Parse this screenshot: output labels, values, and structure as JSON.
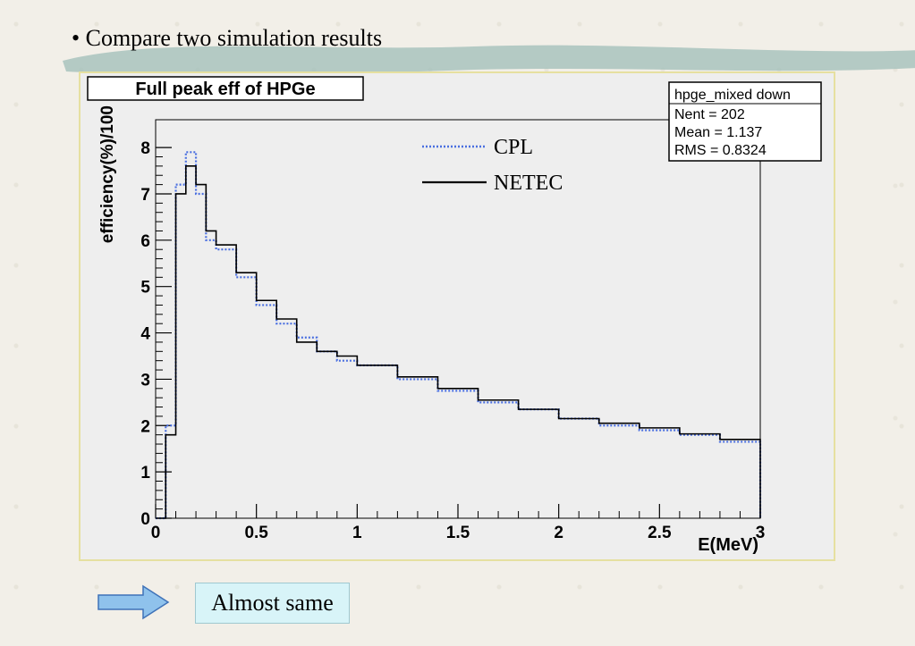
{
  "slide": {
    "bullet": "• Compare two simulation results",
    "conclusion": "Almost same"
  },
  "colors": {
    "cpl": "#4a6fe0",
    "netec": "#000000",
    "brush": "#9fbdb8",
    "frame_bg": "#eeeeee"
  },
  "chart_data": {
    "type": "line",
    "title": "Full peak eff of HPGe",
    "xlabel": "E(MeV)",
    "ylabel": "efficiency(%)/100",
    "xlim": [
      0,
      3
    ],
    "ylim": [
      0,
      8.6
    ],
    "xticks": [
      "0",
      "0.5",
      "1",
      "1.5",
      "2",
      "2.5",
      "3"
    ],
    "yticks": [
      "0",
      "1",
      "2",
      "3",
      "4",
      "5",
      "6",
      "7",
      "8"
    ],
    "legend": {
      "placement": "top-center",
      "entries": [
        "CPL",
        "NETEC"
      ]
    },
    "stats_box": {
      "title": "hpge_mixed down",
      "lines": [
        "Nent = 202",
        "Mean  =  1.137",
        "RMS   = 0.8324"
      ]
    },
    "series": [
      {
        "name": "CPL",
        "style": "dotted",
        "x": [
          0.0,
          0.05,
          0.1,
          0.15,
          0.2,
          0.25,
          0.3,
          0.4,
          0.5,
          0.6,
          0.7,
          0.8,
          0.9,
          1.0,
          1.2,
          1.4,
          1.6,
          1.8,
          2.0,
          2.2,
          2.4,
          2.6,
          2.8,
          3.0
        ],
        "values": [
          0.0,
          2.0,
          7.2,
          7.9,
          7.0,
          6.0,
          5.8,
          5.2,
          4.6,
          4.2,
          3.9,
          3.6,
          3.4,
          3.3,
          3.0,
          2.75,
          2.5,
          2.35,
          2.15,
          2.0,
          1.9,
          1.8,
          1.65,
          1.3
        ]
      },
      {
        "name": "NETEC",
        "style": "solid",
        "x": [
          0.0,
          0.05,
          0.1,
          0.15,
          0.2,
          0.25,
          0.3,
          0.4,
          0.5,
          0.6,
          0.7,
          0.8,
          0.9,
          1.0,
          1.2,
          1.4,
          1.6,
          1.8,
          2.0,
          2.2,
          2.4,
          2.6,
          2.8,
          3.0
        ],
        "values": [
          0.0,
          1.8,
          7.0,
          7.6,
          7.2,
          6.2,
          5.9,
          5.3,
          4.7,
          4.3,
          3.8,
          3.6,
          3.5,
          3.3,
          3.05,
          2.8,
          2.55,
          2.35,
          2.15,
          2.05,
          1.95,
          1.82,
          1.7,
          1.35
        ]
      }
    ]
  }
}
